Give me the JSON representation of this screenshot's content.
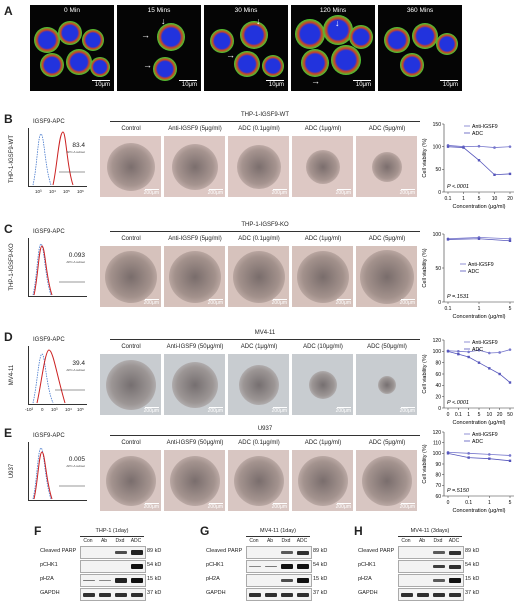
{
  "panel_a": {
    "label": "A",
    "timepoints": [
      "0 Min",
      "15 Mins",
      "30 Mins",
      "120 Mins",
      "360 Mins"
    ],
    "scale_bar": "10μm"
  },
  "panel_b": {
    "label": "B",
    "row_label": "THP-1-IGSF9-WT",
    "flow_title": "IGSF9-APC",
    "flow_pct": "83.4",
    "gate_text": "APC-A subset",
    "axis": {
      "t1": "10³",
      "t2": "10⁴",
      "t3": "10⁵",
      "t4": "10⁶"
    },
    "group_title": "THP-1-IGSF9-WT",
    "treatments": [
      "Control",
      "Anti-IGSF9 (5μg/ml)",
      "ADC (0.1μg/ml)",
      "ADC (1μg/ml)",
      "ADC (5μg/ml)"
    ],
    "scale_bar": "200μm"
  },
  "panel_c": {
    "label": "C",
    "row_label": "THP-1-IGSF9-KO",
    "flow_title": "IGSF9-APC",
    "flow_pct": "0.093",
    "gate_text": "APC-A subset",
    "group_title": "THP-1-IGSF9-KO",
    "treatments": [
      "Control",
      "Anti-IGSF9 (5μg/ml)",
      "ADC (0.1μg/ml)",
      "ADC (1μg/ml)",
      "ADC (5μg/ml)"
    ],
    "scale_bar": "200μm"
  },
  "panel_d": {
    "label": "D",
    "row_label": "MV4-11",
    "flow_title": "IGSF9-APC",
    "flow_pct": "39.4",
    "gate_text": "APC-A subset",
    "axis": {
      "t0": "-10³",
      "t1": "0",
      "t2": "10³",
      "t3": "10⁴",
      "t4": "10⁵"
    },
    "group_title": "MV4-11",
    "treatments": [
      "Control",
      "Anti-IGSF9 (50μg/ml)",
      "ADC (1μg/ml)",
      "ADC (10μg/ml)",
      "ADC (50μg/ml)"
    ],
    "scale_bar": "200μm"
  },
  "panel_e": {
    "label": "E",
    "row_label": "U937",
    "flow_title": "IGSF9-APC",
    "flow_pct": "0.005",
    "gate_text": "APC-A subset",
    "group_title": "U937",
    "treatments": [
      "Control",
      "Anti-IGSF9 (50μg/ml)",
      "ADC (0.1μg/ml)",
      "ADC (1μg/ml)",
      "ADC (5μg/ml)"
    ],
    "scale_bar": "200μm"
  },
  "chart_data": [
    {
      "panel": "B",
      "type": "line",
      "ylabel": "Cell viability (%)",
      "xlabel": "Concentration (μg/ml)",
      "x_ticks": [
        "0.1",
        "1",
        "5",
        "10",
        "20"
      ],
      "y_ticks": [
        "0",
        "50",
        "100",
        "150"
      ],
      "ylim": [
        0,
        150
      ],
      "annotation": "P <.0001",
      "legend_position": "top-right",
      "series": [
        {
          "name": "Anti-IGSF9",
          "values": [
            103,
            100,
            101,
            98,
            100
          ]
        },
        {
          "name": "ADC",
          "values": [
            100,
            98,
            70,
            38,
            40
          ]
        }
      ]
    },
    {
      "panel": "C",
      "type": "line",
      "ylabel": "Cell viability (%)",
      "xlabel": "Concentration (μg/ml)",
      "x_ticks": [
        "0.1",
        "1",
        "5"
      ],
      "y_ticks": [
        "0",
        "50",
        "100"
      ],
      "ylim": [
        0,
        100
      ],
      "annotation": "P =.1531",
      "legend_position": "center",
      "series": [
        {
          "name": "Anti-IGSF9",
          "values": [
            93,
            95,
            93
          ]
        },
        {
          "name": "ADC",
          "values": [
            92,
            93,
            90
          ]
        }
      ]
    },
    {
      "panel": "D",
      "type": "line",
      "ylabel": "Cell viability (%)",
      "xlabel": "Concentration (μg/ml)",
      "x_ticks": [
        "0",
        "0.1",
        "1",
        "5",
        "10",
        "20",
        "50"
      ],
      "y_ticks": [
        "0",
        "20",
        "40",
        "60",
        "80",
        "100",
        "120"
      ],
      "ylim": [
        0,
        120
      ],
      "annotation": "P <.0001",
      "legend_position": "top-right",
      "series": [
        {
          "name": "Anti-IGSF9",
          "values": [
            101,
            100,
            99,
            102,
            97,
            98,
            103
          ]
        },
        {
          "name": "ADC",
          "values": [
            100,
            95,
            90,
            80,
            70,
            60,
            45
          ]
        }
      ]
    },
    {
      "panel": "E",
      "type": "line",
      "ylabel": "Cell viability (%)",
      "xlabel": "Concentration (μg/ml)",
      "x_ticks": [
        "0",
        "0.1",
        "1",
        "5"
      ],
      "y_ticks": [
        "60",
        "70",
        "80",
        "90",
        "100",
        "110",
        "120"
      ],
      "ylim": [
        60,
        120
      ],
      "annotation": "P =.5150",
      "legend_position": "top-right",
      "series": [
        {
          "name": "Anti-IGSF9",
          "values": [
            101,
            100,
            99,
            98
          ]
        },
        {
          "name": "ADC",
          "values": [
            100,
            96,
            95,
            93
          ]
        }
      ]
    }
  ],
  "panel_f": {
    "label": "F",
    "title": "THP-1 (1day)",
    "lanes": [
      "Con",
      "Ab",
      "Dxd",
      "ADC"
    ],
    "rows": [
      {
        "name": "Cleaved PARP",
        "kd": "89 kD"
      },
      {
        "name": "pCHK1",
        "kd": "54 kD"
      },
      {
        "name": "pH2A",
        "kd": "15 kD"
      },
      {
        "name": "GAPDH",
        "kd": "37 kD"
      }
    ]
  },
  "panel_g": {
    "label": "G",
    "title": "MV4-11 (1day)",
    "lanes": [
      "Con",
      "Ab",
      "Dxd",
      "ADC"
    ],
    "rows": [
      {
        "name": "Cleaved PARP",
        "kd": "89 kD"
      },
      {
        "name": "pCHK1",
        "kd": "54 kD"
      },
      {
        "name": "pH2A",
        "kd": "15 kD"
      },
      {
        "name": "GAPDH",
        "kd": "37 kD"
      }
    ]
  },
  "panel_h": {
    "label": "H",
    "title": "MV4-11 (3days)",
    "lanes": [
      "Con",
      "Ab",
      "Dxd",
      "ADC"
    ],
    "rows": [
      {
        "name": "Cleaved PARP",
        "kd": "89 kD"
      },
      {
        "name": "pCHK1",
        "kd": "54 kD"
      },
      {
        "name": "pH2A",
        "kd": "15 kD"
      },
      {
        "name": "GAPDH",
        "kd": "37 kD"
      }
    ]
  }
}
